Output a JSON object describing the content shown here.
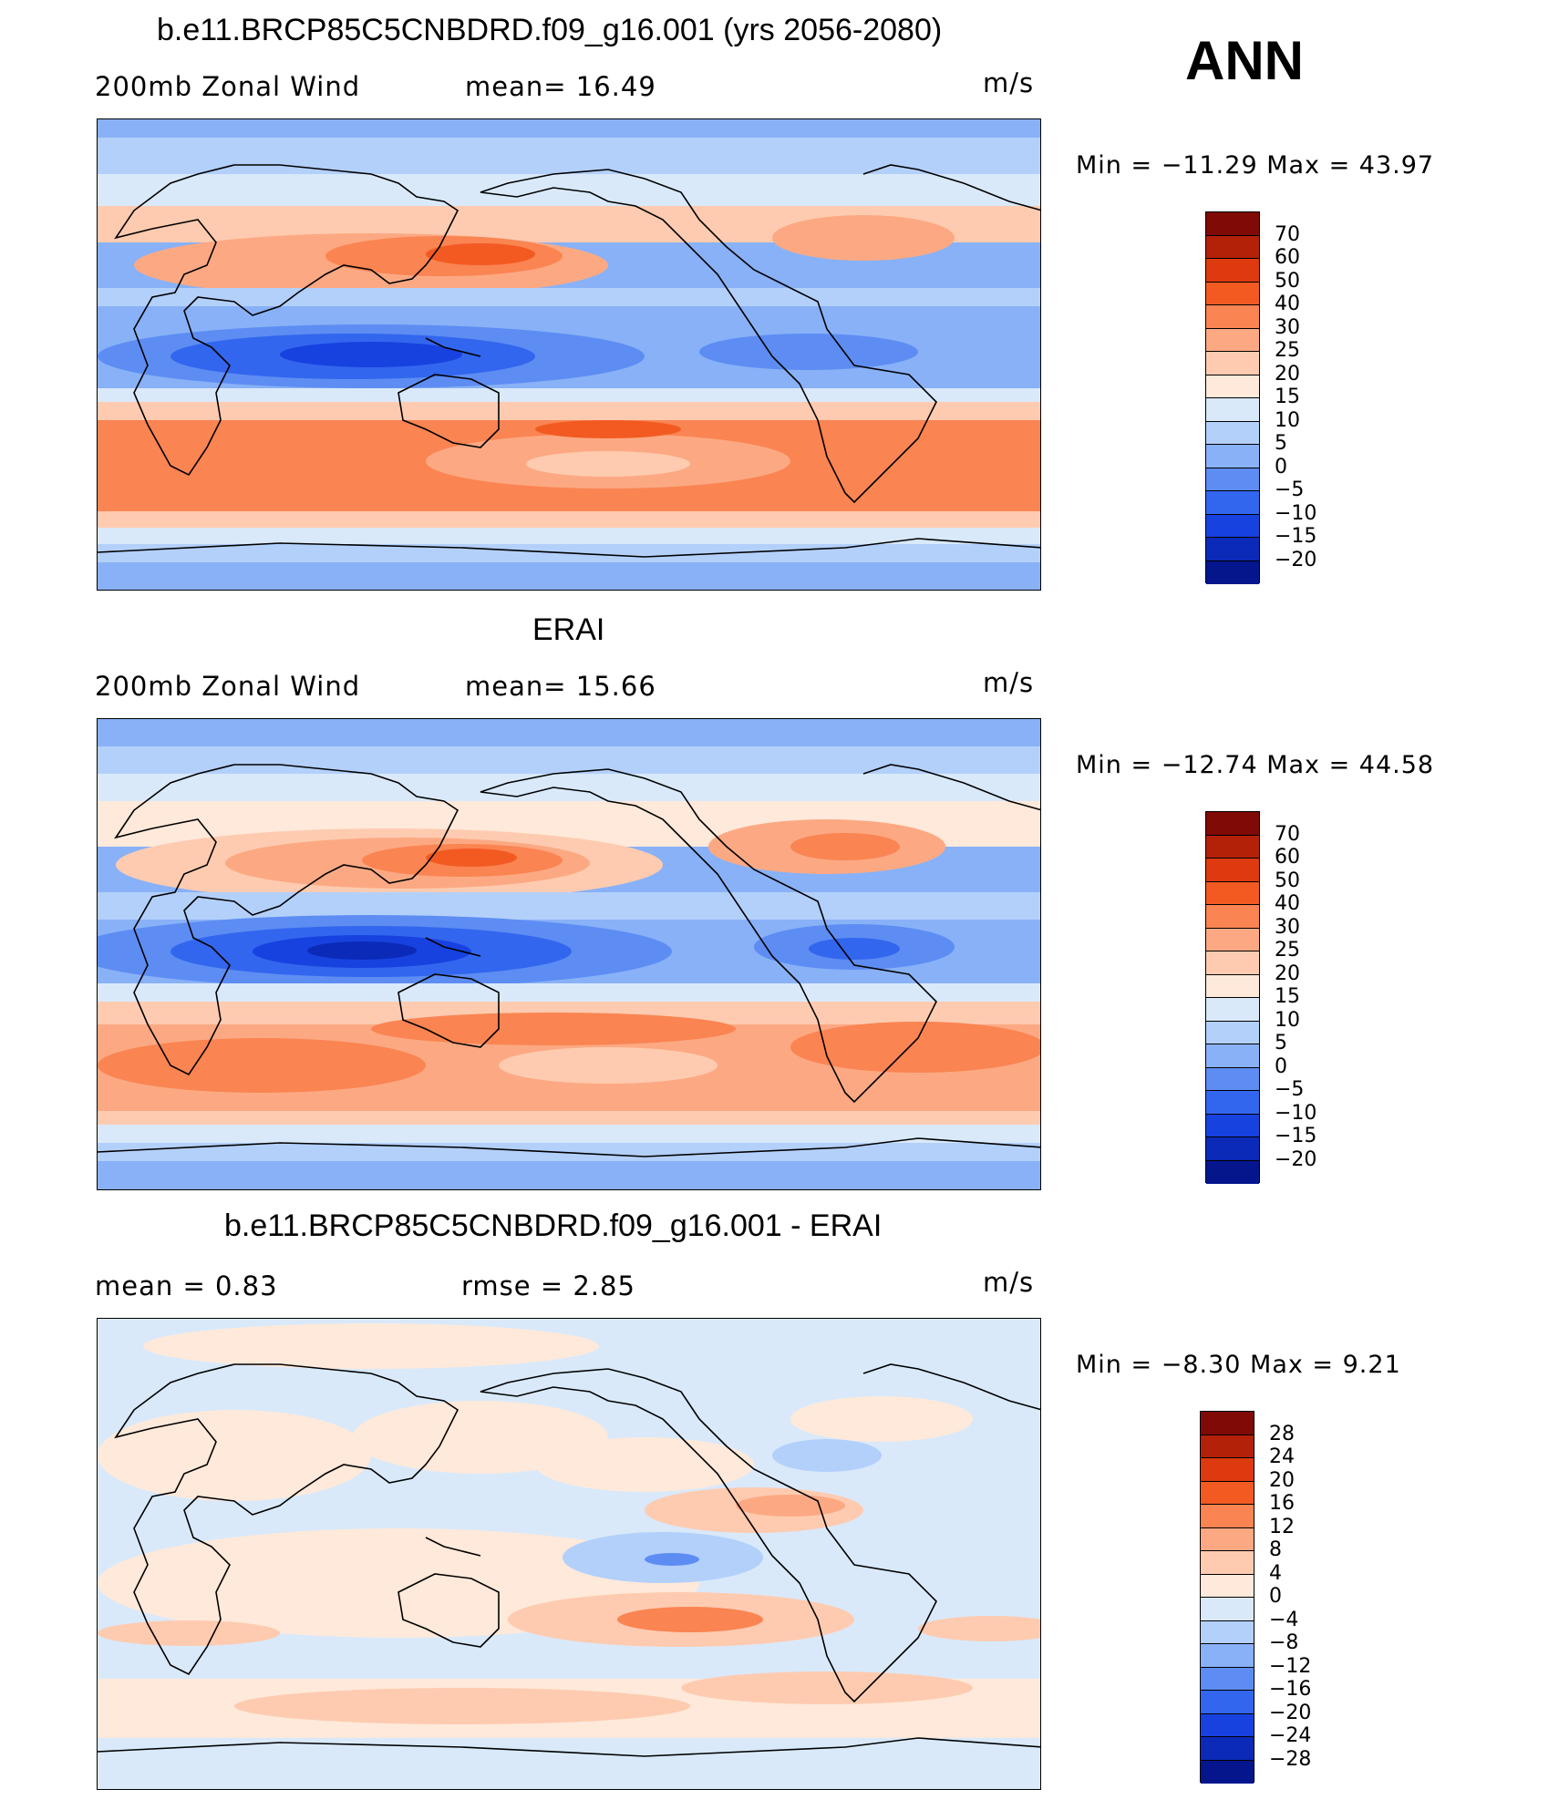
{
  "season_label": "ANN",
  "panels": [
    {
      "title": "b.e11.BRCP85C5CNBDRD.f09_g16.001 (yrs 2056-2080)",
      "left_label": "200mb  Zonal  Wind",
      "middle_label": "mean=   16.49",
      "units": "m/s",
      "minmax": "Min  =  −11.29  Max  =    43.97",
      "colorbar": {
        "colors": [
          "#7f0a06",
          "#b32109",
          "#dd3a0f",
          "#f25a22",
          "#fa8452",
          "#fca983",
          "#fecbb0",
          "#fee9da",
          "#d9e9fa",
          "#b3d0fb",
          "#89b1f7",
          "#5d8df3",
          "#3366ee",
          "#1742e0",
          "#0b2ab8",
          "#05168d"
        ],
        "labels": [
          "70",
          "60",
          "50",
          "40",
          "30",
          "25",
          "20",
          "15",
          "10",
          "5",
          "0",
          "−5",
          "−10",
          "−15",
          "−20"
        ]
      }
    },
    {
      "title": "ERAI",
      "left_label": "200mb  Zonal  Wind",
      "middle_label": "mean=   15.66",
      "units": "m/s",
      "minmax": "Min  =  −12.74  Max  =    44.58",
      "colorbar": {
        "colors": [
          "#7f0a06",
          "#b32109",
          "#dd3a0f",
          "#f25a22",
          "#fa8452",
          "#fca983",
          "#fecbb0",
          "#fee9da",
          "#d9e9fa",
          "#b3d0fb",
          "#89b1f7",
          "#5d8df3",
          "#3366ee",
          "#1742e0",
          "#0b2ab8",
          "#05168d"
        ],
        "labels": [
          "70",
          "60",
          "50",
          "40",
          "30",
          "25",
          "20",
          "15",
          "10",
          "5",
          "0",
          "−5",
          "−10",
          "−15",
          "−20"
        ]
      }
    },
    {
      "title": "b.e11.BRCP85C5CNBDRD.f09_g16.001 - ERAI",
      "left_label": "mean  =     0.83",
      "middle_label": "rmse  =     2.85",
      "units": "m/s",
      "minmax": "Min  =    −8.30  Max  =      9.21",
      "colorbar": {
        "colors": [
          "#7f0a06",
          "#b32109",
          "#dd3a0f",
          "#f25a22",
          "#fa8452",
          "#fca983",
          "#fecbb0",
          "#fee9da",
          "#d9e9fa",
          "#b3d0fb",
          "#89b1f7",
          "#5d8df3",
          "#3366ee",
          "#1742e0",
          "#0b2ab8",
          "#05168d"
        ],
        "labels": [
          "28",
          "24",
          "20",
          "16",
          "12",
          "8",
          "4",
          "0",
          "−4",
          "−8",
          "−12",
          "−16",
          "−20",
          "−24",
          "−28"
        ]
      }
    }
  ]
}
